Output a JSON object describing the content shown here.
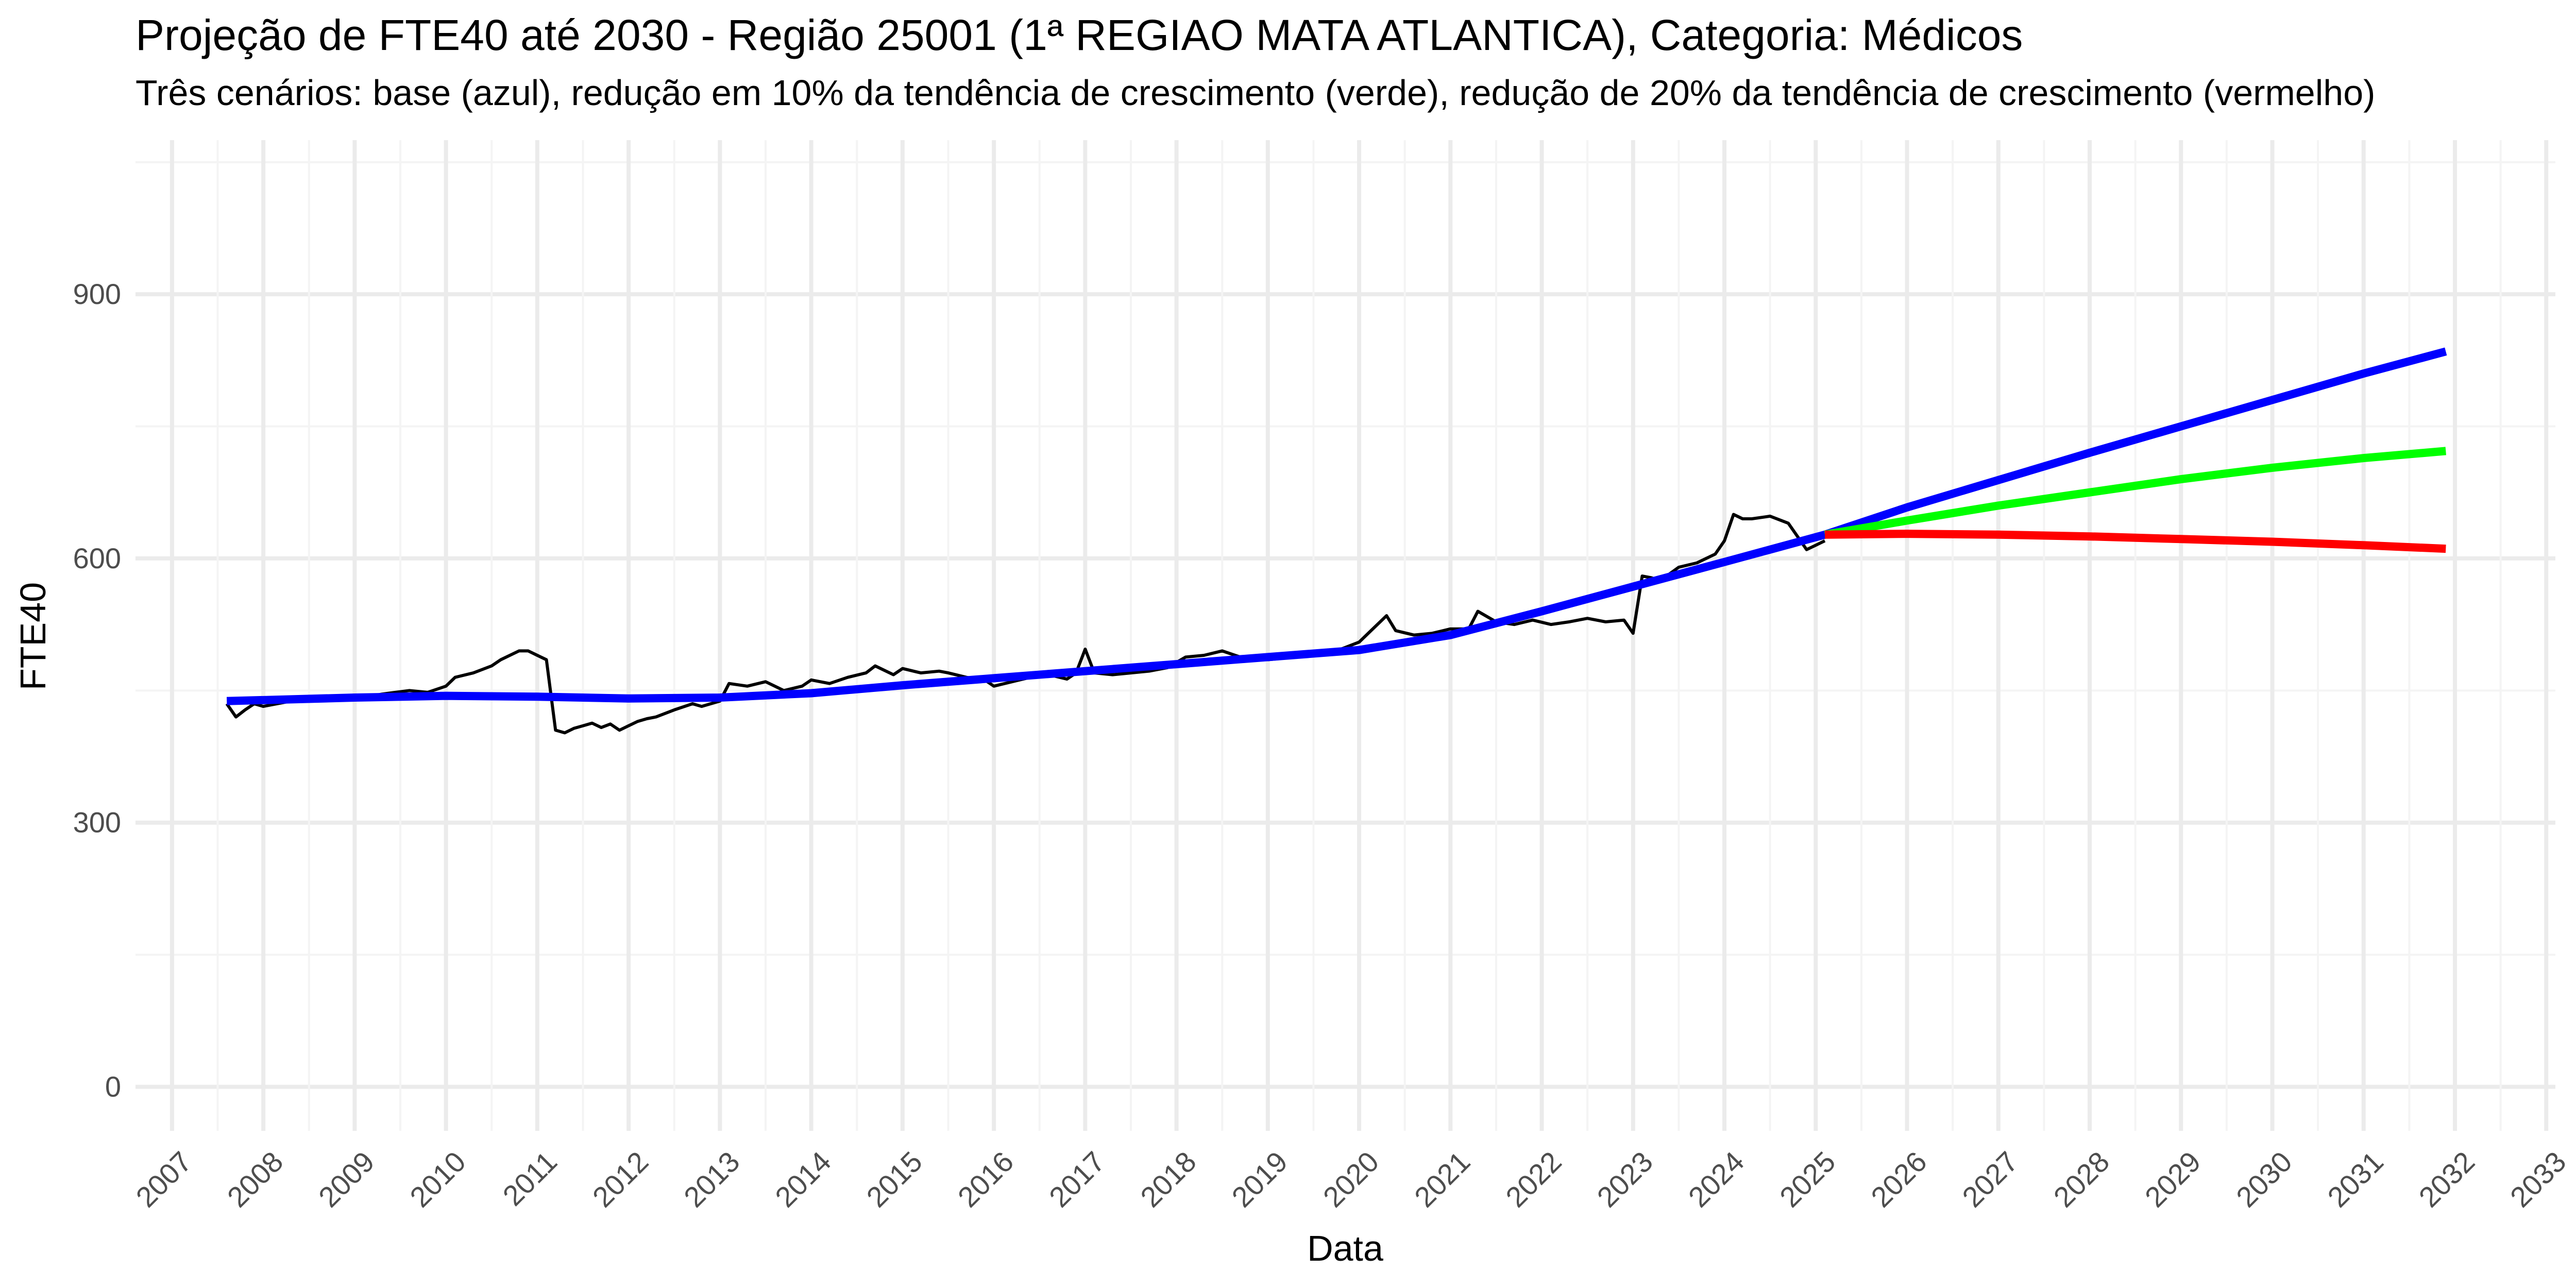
{
  "header": {
    "title": "Projeção de FTE40 até 2030 - Região 25001 (1ª REGIAO MATA ATLANTICA), Categoria: Médicos",
    "subtitle": "Três cenários: base (azul), redução em 10% da tendência de crescimento (verde), redução de 20% da tendência de crescimento (vermelho)"
  },
  "chart_data": {
    "type": "line",
    "title": "Projeção de FTE40 até 2030 - Região 25001 (1ª REGIAO MATA ATLANTICA), Categoria: Médicos",
    "subtitle": "Três cenários: base (azul), redução em 10% da tendência de crescimento (verde), redução de 20% da tendência de crescimento (vermelho)",
    "xlabel": "Data",
    "ylabel": "FTE40",
    "xlim": [
      2006.6,
      2033.1
    ],
    "ylim": [
      -50,
      1075
    ],
    "x_ticks": [
      "2007",
      "2008",
      "2009",
      "2010",
      "2011",
      "2012",
      "2013",
      "2014",
      "2015",
      "2016",
      "2017",
      "2018",
      "2019",
      "2020",
      "2021",
      "2022",
      "2023",
      "2024",
      "2025",
      "2026",
      "2027",
      "2028",
      "2029",
      "2030",
      "2031",
      "2032",
      "2033"
    ],
    "y_ticks": [
      0,
      300,
      600,
      900
    ],
    "grid": true,
    "legend": "none",
    "colors": {
      "observed": "#000000",
      "base": "#0000ff",
      "green": "#00ff00",
      "red": "#ff0000",
      "grid_major": "#ebebeb",
      "grid_minor": "#f4f4f4",
      "tick_text": "#4d4d4d"
    },
    "series": [
      {
        "color": "#000000",
        "width": "thin",
        "x": [
          2007.6,
          2007.7,
          2007.8,
          2007.9,
          2008.0,
          2008.2,
          2008.4,
          2008.6,
          2008.8,
          2009.0,
          2009.3,
          2009.6,
          2009.8,
          2010.0,
          2010.1,
          2010.3,
          2010.5,
          2010.6,
          2010.8,
          2010.9,
          2011.0,
          2011.1,
          2011.2,
          2011.3,
          2011.4,
          2011.5,
          2011.6,
          2011.7,
          2011.8,
          2011.9,
          2012.0,
          2012.1,
          2012.2,
          2012.3,
          2012.5,
          2012.7,
          2012.8,
          2013.0,
          2013.1,
          2013.3,
          2013.5,
          2013.7,
          2013.9,
          2014.0,
          2014.2,
          2014.4,
          2014.6,
          2014.7,
          2014.9,
          2015.0,
          2015.2,
          2015.4,
          2015.5,
          2015.7,
          2015.9,
          2016.0,
          2016.2,
          2016.4,
          2016.6,
          2016.8,
          2016.9,
          2017.0,
          2017.1,
          2017.3,
          2017.5,
          2017.7,
          2017.9,
          2018.1,
          2018.3,
          2018.5,
          2018.7,
          2018.9,
          2019.0,
          2019.2,
          2019.4,
          2019.6,
          2019.8,
          2020.0,
          2020.1,
          2020.3,
          2020.4,
          2020.6,
          2020.8,
          2021.0,
          2021.2,
          2021.3,
          2021.5,
          2021.7,
          2021.9,
          2022.1,
          2022.3,
          2022.5,
          2022.7,
          2022.9,
          2023.0,
          2023.1,
          2023.2,
          2023.3,
          2023.5,
          2023.7,
          2023.9,
          2024.0,
          2024.1,
          2024.2,
          2024.3,
          2024.5,
          2024.7,
          2024.8,
          2024.9,
          2025.0,
          2025.1
        ],
        "values": [
          435,
          420,
          428,
          435,
          432,
          436,
          440,
          438,
          442,
          440,
          446,
          450,
          448,
          455,
          465,
          470,
          478,
          485,
          495,
          495,
          490,
          485,
          405,
          402,
          407,
          410,
          413,
          408,
          412,
          405,
          410,
          415,
          418,
          420,
          428,
          435,
          432,
          438,
          458,
          455,
          460,
          450,
          455,
          462,
          458,
          465,
          470,
          478,
          468,
          475,
          470,
          472,
          470,
          465,
          462,
          455,
          460,
          465,
          468,
          463,
          470,
          497,
          470,
          468,
          470,
          472,
          476,
          488,
          490,
          495,
          488,
          490,
          485,
          487,
          490,
          495,
          497,
          505,
          515,
          535,
          518,
          513,
          515,
          520,
          520,
          540,
          528,
          525,
          530,
          525,
          528,
          532,
          528,
          530,
          515,
          580,
          578,
          575,
          590,
          595,
          605,
          620,
          650,
          645,
          645,
          648,
          640,
          625,
          610,
          615,
          620
        ]
      },
      {
        "color": "#0000ff",
        "width": "thick",
        "x": [
          2007.6,
          2009.0,
          2010.0,
          2011.0,
          2012.0,
          2013.0,
          2014.0,
          2015.0,
          2016.0,
          2017.0,
          2018.0,
          2019.0,
          2020.0,
          2021.0,
          2022.0,
          2023.0,
          2024.0,
          2025.1,
          2026.0,
          2027.0,
          2028.0,
          2029.0,
          2030.0,
          2031.0,
          2031.9
        ],
        "values": [
          438,
          442,
          444,
          443,
          441,
          442,
          447,
          456,
          464,
          472,
          480,
          488,
          496,
          513,
          540,
          568,
          596,
          627,
          658,
          689,
          720,
          750,
          780,
          810,
          835
        ]
      },
      {
        "color": "#00ff00",
        "width": "thick",
        "x": [
          2025.1,
          2026.0,
          2027.0,
          2028.0,
          2029.0,
          2030.0,
          2031.0,
          2031.9
        ],
        "values": [
          627,
          643,
          660,
          675,
          690,
          703,
          714,
          722
        ]
      },
      {
        "color": "#ff0000",
        "width": "thick",
        "x": [
          2025.1,
          2026.0,
          2027.0,
          2028.0,
          2029.0,
          2030.0,
          2031.0,
          2031.9
        ],
        "values": [
          627,
          628,
          627,
          625,
          622,
          619,
          615,
          611
        ]
      }
    ]
  }
}
